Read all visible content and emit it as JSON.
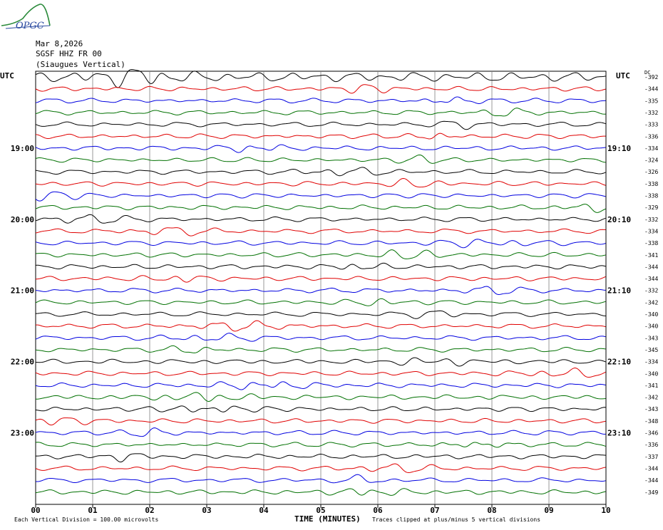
{
  "logo_text": "OPGC",
  "header": {
    "date": "Mar 8,2026",
    "station": "SGSF HHZ FR 00",
    "location": "(Siaugues Vertical)"
  },
  "left_axis_label": "UTC",
  "right_axis_label": "UTC",
  "dc_label": "DC",
  "footer": {
    "left": "Each Vertical Division =  100.00 microvolts",
    "xlabel": "TIME (MINUTES)",
    "right": "Traces clipped at plus/minus 5 vertical divisions"
  },
  "colors": {
    "black": "#000000",
    "red": "#e00000",
    "blue": "#0000e0",
    "green": "#007000",
    "grid": "#808080"
  },
  "chart_data": {
    "type": "line",
    "title": "SGSF HHZ FR 00 (Siaugues Vertical)",
    "xlabel": "TIME (MINUTES)",
    "ylabel": "UTC",
    "x_ticks": [
      "00",
      "01",
      "02",
      "03",
      "04",
      "05",
      "06",
      "07",
      "08",
      "09",
      "10"
    ],
    "xlim": [
      0,
      10
    ],
    "left_time_labels": [
      {
        "label": "19:00",
        "row": 6
      },
      {
        "label": "20:00",
        "row": 12
      },
      {
        "label": "21:00",
        "row": 18
      },
      {
        "label": "22:00",
        "row": 24
      },
      {
        "label": "23:00",
        "row": 30
      }
    ],
    "right_time_labels": [
      {
        "label": "19:10",
        "row": 6
      },
      {
        "label": "20:10",
        "row": 12
      },
      {
        "label": "21:10",
        "row": 18
      },
      {
        "label": "22:10",
        "row": 24
      },
      {
        "label": "23:10",
        "row": 30
      }
    ],
    "dc_offsets": [
      -392,
      -344,
      -335,
      -332,
      -333,
      -336,
      -334,
      -324,
      -326,
      -338,
      -338,
      -329,
      -332,
      -334,
      -338,
      -341,
      -344,
      -344,
      -332,
      -342,
      -340,
      -340,
      -343,
      -345,
      -334,
      -340,
      -341,
      -342,
      -343,
      -348,
      -346,
      -336,
      -337,
      -344,
      -344,
      -349
    ],
    "trace_colors": [
      "black",
      "red",
      "blue",
      "green"
    ],
    "trace_count": 36,
    "grid": true
  }
}
